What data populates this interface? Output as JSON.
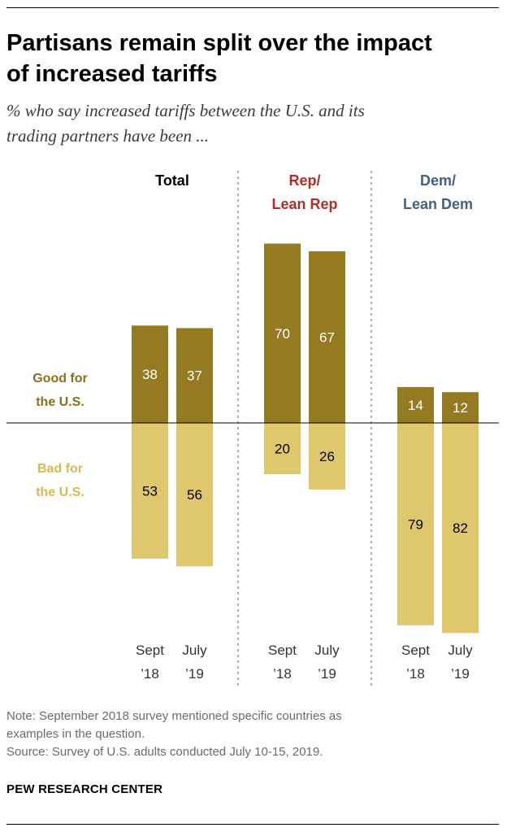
{
  "header": {
    "title_line1": "Partisans remain split over the impact",
    "title_line2": "of increased tariffs",
    "subtitle_line1": "% who say increased tariffs between the U.S. and its",
    "subtitle_line2": "trading partners have been ..."
  },
  "chart_data": {
    "type": "bar",
    "layout": "diverging",
    "groups": [
      {
        "name": "Total",
        "label_lines": [
          "Total"
        ]
      },
      {
        "name": "Rep/Lean Rep",
        "label_lines": [
          "Rep/",
          "Lean Rep"
        ]
      },
      {
        "name": "Dem/Lean Dem",
        "label_lines": [
          "Dem/",
          "Lean Dem"
        ]
      }
    ],
    "categories": [
      {
        "name": "Sept '18",
        "label_lines": [
          "Sept",
          "’18"
        ]
      },
      {
        "name": "July '19",
        "label_lines": [
          "July",
          "’19"
        ]
      }
    ],
    "series": [
      {
        "name": "Good for the U.S.",
        "label_lines": [
          "Good for",
          "the U.S."
        ],
        "direction": "up",
        "values": [
          [
            38,
            37
          ],
          [
            70,
            67
          ],
          [
            14,
            12
          ]
        ]
      },
      {
        "name": "Bad for the U.S.",
        "label_lines": [
          "Bad for",
          "the U.S."
        ],
        "direction": "down",
        "values": [
          [
            53,
            56
          ],
          [
            20,
            26
          ],
          [
            79,
            82
          ]
        ]
      }
    ]
  },
  "colors": {
    "good": "#957a22",
    "bad": "#dfc76e",
    "good_label": "#8a6f1c",
    "bad_label": "#d8b94e",
    "total_label": "#000000",
    "rep_label": "#b22d27",
    "dem_label": "#44617f",
    "axis": "#000000",
    "divider": "#777777"
  },
  "footer": {
    "note_line1": "Note: September 2018 survey mentioned specific countries as",
    "note_line2": "examples in the question.",
    "source": "Source: Survey of U.S. adults conducted July 10-15, 2019.",
    "org": "PEW RESEARCH CENTER"
  }
}
